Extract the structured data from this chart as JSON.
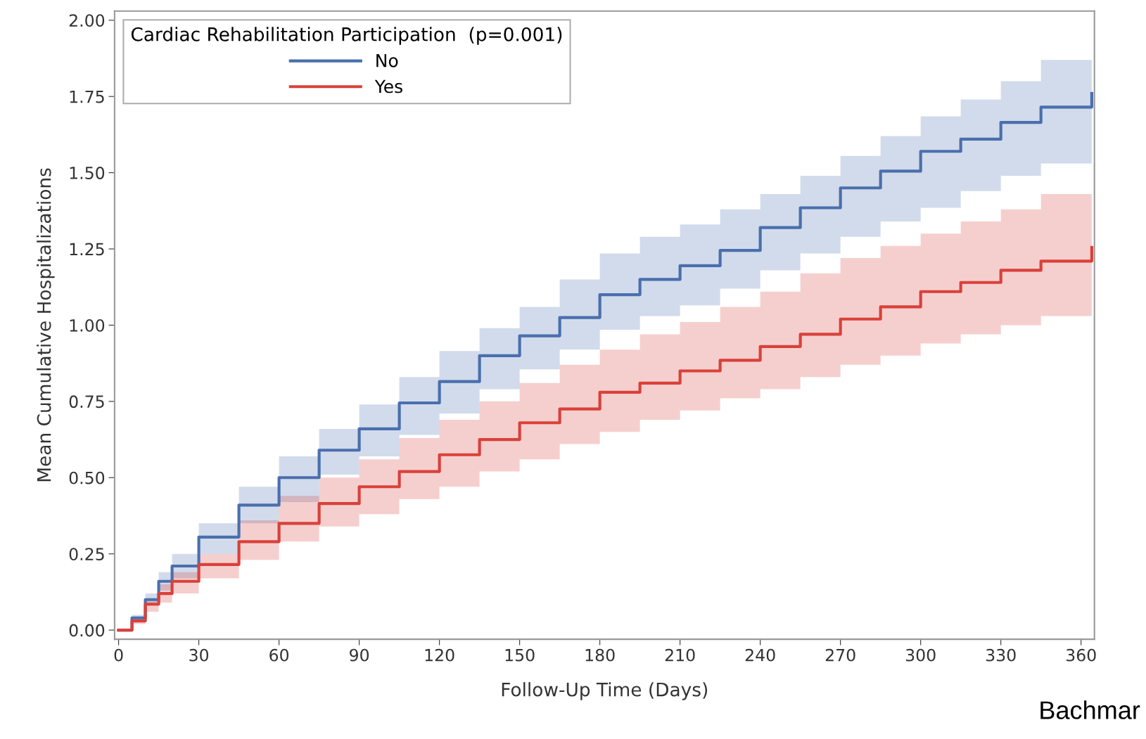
{
  "chart_data": {
    "type": "step",
    "xlabel": "Follow-Up Time (Days)",
    "ylabel": "Mean Cumulative Hospitalizations",
    "legend_title": "Cardiac Rehabilitation Participation  (p=0.001)",
    "legend": "top left",
    "grid": false,
    "x": [
      0,
      5,
      10,
      15,
      20,
      30,
      45,
      60,
      75,
      90,
      105,
      120,
      135,
      150,
      165,
      180,
      195,
      210,
      225,
      240,
      255,
      270,
      285,
      300,
      315,
      330,
      345,
      364
    ],
    "series": [
      {
        "name": "No",
        "color": "#4a6fae",
        "values": [
          0,
          0.04,
          0.1,
          0.16,
          0.21,
          0.305,
          0.41,
          0.5,
          0.59,
          0.66,
          0.745,
          0.815,
          0.9,
          0.965,
          1.025,
          1.1,
          1.15,
          1.195,
          1.245,
          1.32,
          1.385,
          1.45,
          1.505,
          1.57,
          1.61,
          1.665,
          1.715,
          1.76
        ],
        "upper": [
          0,
          0.05,
          0.12,
          0.19,
          0.25,
          0.35,
          0.47,
          0.57,
          0.66,
          0.74,
          0.83,
          0.915,
          0.99,
          1.06,
          1.15,
          1.235,
          1.29,
          1.33,
          1.38,
          1.43,
          1.49,
          1.555,
          1.62,
          1.685,
          1.74,
          1.8,
          1.87,
          1.965
        ],
        "lower": [
          0,
          0.03,
          0.08,
          0.13,
          0.17,
          0.25,
          0.35,
          0.42,
          0.51,
          0.57,
          0.64,
          0.71,
          0.79,
          0.855,
          0.92,
          0.985,
          1.03,
          1.065,
          1.12,
          1.18,
          1.235,
          1.29,
          1.34,
          1.385,
          1.44,
          1.49,
          1.53,
          1.57
        ]
      },
      {
        "name": "Yes",
        "color": "#d9413a",
        "values": [
          0,
          0.03,
          0.085,
          0.12,
          0.16,
          0.215,
          0.29,
          0.35,
          0.415,
          0.47,
          0.52,
          0.575,
          0.625,
          0.68,
          0.725,
          0.78,
          0.81,
          0.85,
          0.885,
          0.93,
          0.97,
          1.02,
          1.06,
          1.11,
          1.14,
          1.18,
          1.21,
          1.255
        ],
        "upper": [
          0,
          0.04,
          0.1,
          0.15,
          0.19,
          0.25,
          0.36,
          0.44,
          0.5,
          0.56,
          0.63,
          0.69,
          0.75,
          0.81,
          0.87,
          0.92,
          0.97,
          1.01,
          1.06,
          1.11,
          1.17,
          1.22,
          1.26,
          1.3,
          1.34,
          1.38,
          1.43,
          1.475
        ],
        "lower": [
          0,
          0.02,
          0.06,
          0.09,
          0.12,
          0.17,
          0.23,
          0.29,
          0.34,
          0.38,
          0.43,
          0.47,
          0.52,
          0.56,
          0.61,
          0.65,
          0.69,
          0.72,
          0.76,
          0.79,
          0.83,
          0.87,
          0.9,
          0.94,
          0.97,
          1.0,
          1.03,
          1.065
        ]
      }
    ],
    "xlim": [
      -1.5,
      365
    ],
    "xticks": [
      0,
      30,
      60,
      90,
      120,
      150,
      180,
      210,
      240,
      270,
      300,
      330,
      360
    ],
    "ylim": [
      -0.03,
      2.03
    ],
    "yticks": [
      {
        "value": 0,
        "label": "0.00"
      },
      {
        "value": 0.25,
        "label": "0.25"
      },
      {
        "value": 0.5,
        "label": "0.50"
      },
      {
        "value": 0.75,
        "label": "0.75"
      },
      {
        "value": 1,
        "label": "1.00"
      },
      {
        "value": 1.25,
        "label": "1.25"
      },
      {
        "value": 1.5,
        "label": "1.50"
      },
      {
        "value": 1.75,
        "label": "1.75"
      },
      {
        "value": 2,
        "label": "2.00"
      }
    ],
    "annotations": [
      "Bachmar"
    ]
  }
}
